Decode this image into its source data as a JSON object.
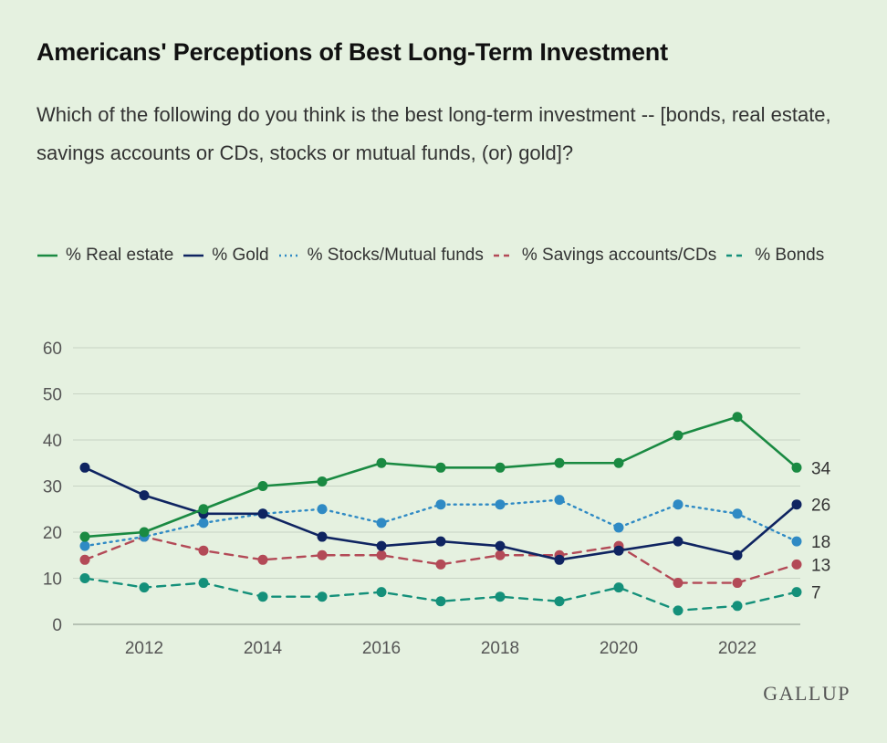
{
  "title": "Americans' Perceptions of Best Long-Term Investment",
  "subtitle": "Which of the following do you think is the best long-term investment -- [bonds, real estate, savings accounts or CDs, stocks or mutual funds, (or) gold]?",
  "logo": "GALLUP",
  "chart_data": {
    "type": "line",
    "x": [
      2011,
      2012,
      2013,
      2014,
      2015,
      2016,
      2017,
      2018,
      2019,
      2020,
      2021,
      2022,
      2023
    ],
    "xticks": [
      2012,
      2014,
      2016,
      2018,
      2020,
      2022
    ],
    "yticks": [
      0,
      10,
      20,
      30,
      40,
      50,
      60
    ],
    "ylim": [
      0,
      60
    ],
    "grid": true,
    "legend_position": "top",
    "series": [
      {
        "name": "% Real estate",
        "color": "#1a8a42",
        "style": "solid",
        "values": [
          19,
          20,
          25,
          30,
          31,
          35,
          34,
          34,
          35,
          35,
          41,
          45,
          34
        ],
        "end_label": "34"
      },
      {
        "name": "% Gold",
        "color": "#0f2461",
        "style": "solid",
        "values": [
          34,
          28,
          24,
          24,
          19,
          17,
          18,
          17,
          14,
          16,
          18,
          15,
          26
        ],
        "end_label": "26"
      },
      {
        "name": "% Stocks/Mutual funds",
        "color": "#2f8ac4",
        "style": "dotted",
        "values": [
          17,
          19,
          22,
          24,
          25,
          22,
          26,
          26,
          27,
          21,
          26,
          24,
          18
        ],
        "end_label": "18"
      },
      {
        "name": "% Savings accounts/CDs",
        "color": "#b34a57",
        "style": "dashed",
        "values": [
          14,
          19,
          16,
          14,
          15,
          15,
          13,
          15,
          15,
          17,
          9,
          9,
          13
        ],
        "end_label": "13"
      },
      {
        "name": "% Bonds",
        "color": "#14907a",
        "style": "dashed",
        "values": [
          10,
          8,
          9,
          6,
          6,
          7,
          5,
          6,
          5,
          8,
          3,
          4,
          7
        ],
        "end_label": "7"
      }
    ]
  }
}
